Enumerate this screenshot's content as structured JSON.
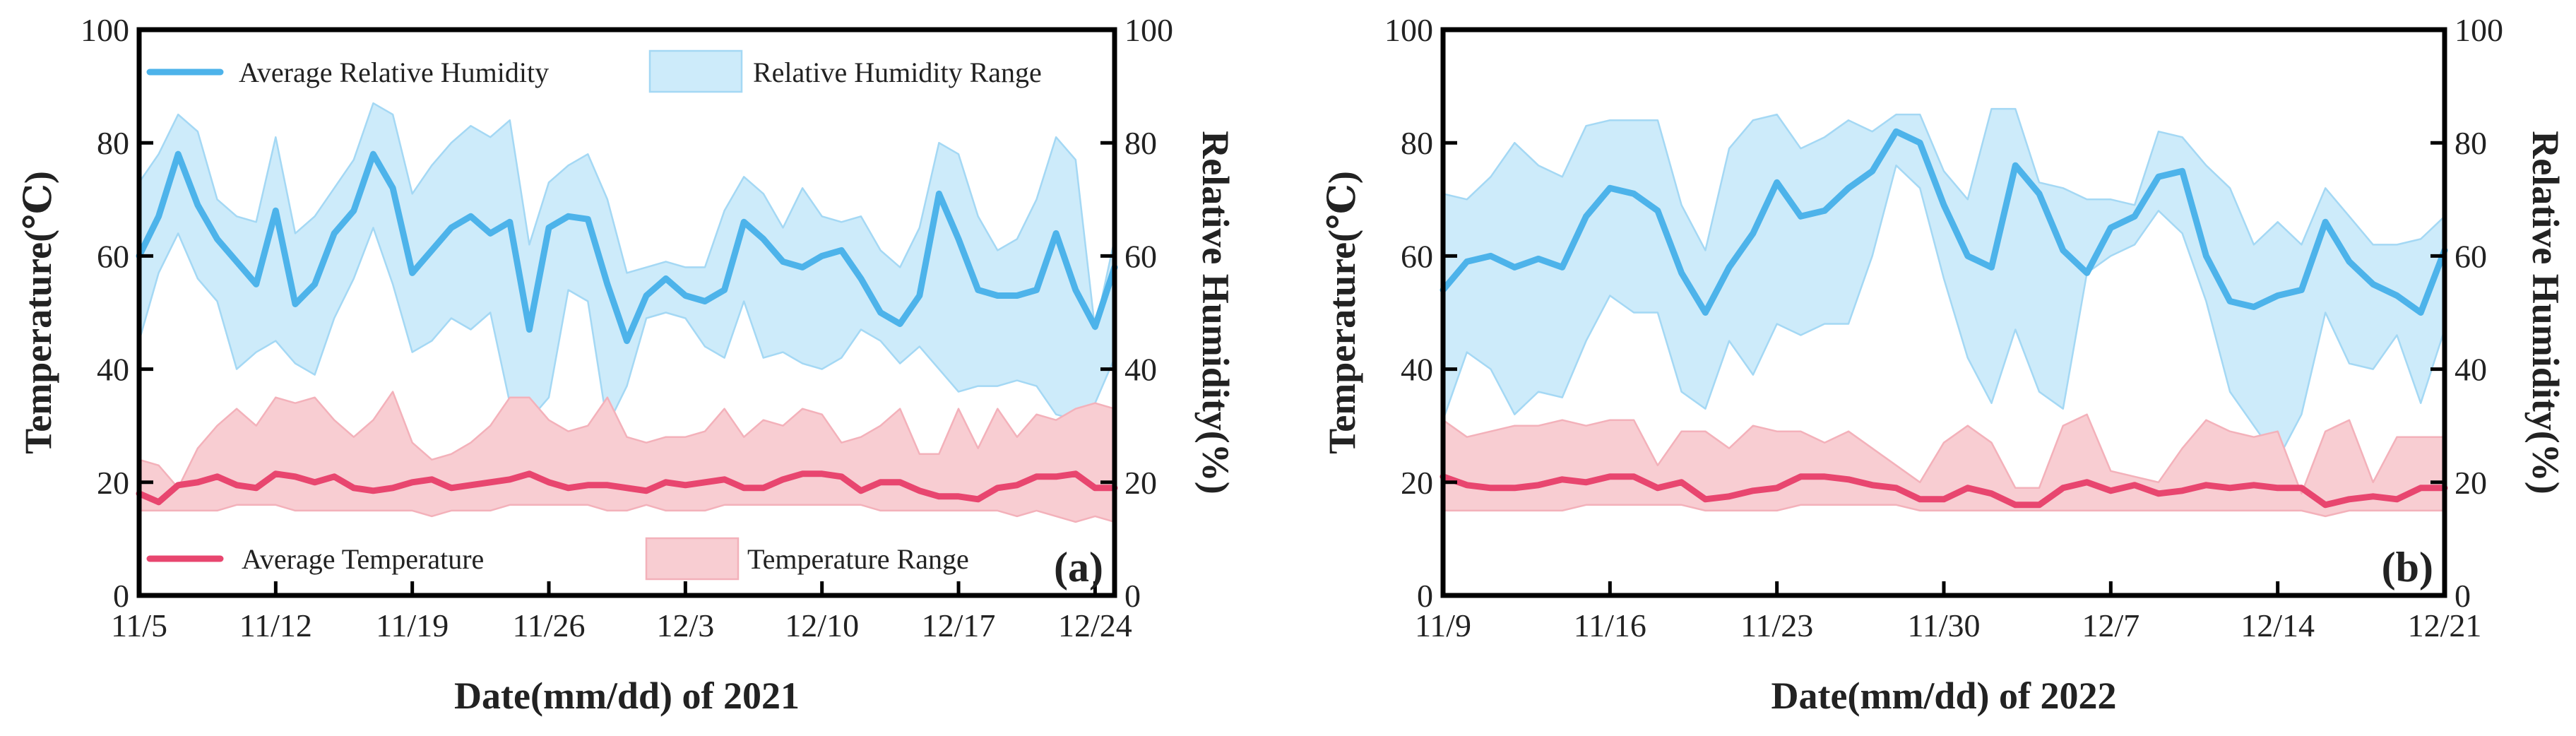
{
  "chart_data": [
    {
      "type": "line",
      "panel_label": "(a)",
      "xlabel": "Date(mm/dd) of 2021",
      "ylabel_left": "Temperature(℃)",
      "ylabel_right": "Relative Humidity(%)",
      "ylim": [
        0,
        100
      ],
      "y_ticks": [
        "0",
        "20",
        "40",
        "60",
        "80",
        "100"
      ],
      "x_ticks": [
        "11/5",
        "11/12",
        "11/19",
        "11/26",
        "12/3",
        "12/10",
        "12/17",
        "12/24"
      ],
      "x_tick_index": [
        0,
        7,
        14,
        21,
        28,
        35,
        42,
        49
      ],
      "legend": {
        "avg_humidity": "Average Relative Humidity",
        "humidity_range": "Relative Humidity Range",
        "avg_temperature": "Average Temperature",
        "temperature_range": "Temperature Range"
      },
      "colors": {
        "humidity": "#4db3ea",
        "humidity_fill": "#cdebfa",
        "temperature": "#e8466f",
        "temperature_fill": "#f8cdd2"
      },
      "series": [
        {
          "name": "Average Relative Humidity",
          "values": [
            60,
            67,
            78,
            69,
            63,
            59,
            55,
            68,
            51.5,
            55,
            64,
            68,
            78,
            72,
            57,
            61,
            65,
            67,
            64,
            66,
            47,
            65,
            67,
            66.5,
            55,
            45,
            53,
            56,
            53,
            52,
            54,
            66,
            63,
            59,
            58,
            60,
            61,
            56,
            50,
            48,
            53,
            71,
            63,
            54,
            53,
            53,
            54,
            64,
            54,
            47.5,
            58
          ]
        },
        {
          "name": "Relative Humidity Range (upper)",
          "values": [
            73,
            78,
            85,
            82,
            70,
            67,
            66,
            81,
            64,
            67,
            72,
            77,
            87,
            85,
            71,
            76,
            80,
            83,
            81,
            84,
            62,
            73,
            76,
            78,
            70,
            57,
            58,
            59,
            58,
            58,
            68,
            74,
            71,
            65,
            72,
            67,
            66,
            67,
            61,
            58,
            65,
            80,
            78,
            67,
            61,
            63,
            70,
            81,
            77,
            47,
            63
          ]
        },
        {
          "name": "Relative Humidity Range (lower)",
          "values": [
            45,
            57,
            64,
            56,
            52,
            40,
            43,
            45,
            41,
            39,
            49,
            56,
            65,
            55,
            43,
            45,
            49,
            47,
            50,
            34,
            31,
            35,
            54,
            52,
            30,
            37,
            49,
            50,
            49,
            44,
            42,
            52,
            42,
            43,
            41,
            40,
            42,
            47,
            45,
            41,
            44,
            40,
            36,
            37,
            37,
            38,
            37,
            32,
            31,
            34,
            42
          ]
        },
        {
          "name": "Average Temperature",
          "values": [
            18,
            16.5,
            19.5,
            20,
            21,
            19.5,
            19,
            21.5,
            21,
            20,
            21,
            19,
            18.5,
            19,
            20,
            20.5,
            19,
            19.5,
            20,
            20.5,
            21.5,
            20,
            19,
            19.5,
            19.5,
            19,
            18.5,
            20,
            19.5,
            20,
            20.5,
            19,
            19,
            20.5,
            21.5,
            21.5,
            21,
            18.5,
            20,
            20,
            18.5,
            17.5,
            17.5,
            17,
            19,
            19.5,
            21,
            21,
            21.5,
            19,
            19
          ]
        },
        {
          "name": "Temperature Range (upper)",
          "values": [
            24,
            23,
            19,
            26,
            30,
            33,
            30,
            35,
            34,
            35,
            31,
            28,
            31,
            36,
            27,
            24,
            25,
            27,
            30,
            35,
            35,
            31,
            29,
            30,
            35,
            28,
            27,
            28,
            28,
            29,
            33,
            28,
            31,
            30,
            33,
            32,
            27,
            28,
            30,
            33,
            25,
            25,
            33,
            26,
            33,
            28,
            32,
            31,
            33,
            34,
            33
          ]
        },
        {
          "name": "Temperature Range (lower)",
          "values": [
            15,
            15,
            15,
            15,
            15,
            16,
            16,
            16,
            15,
            15,
            15,
            15,
            15,
            15,
            15,
            14,
            15,
            15,
            15,
            16,
            16,
            16,
            16,
            16,
            15,
            15,
            16,
            15,
            15,
            15,
            16,
            16,
            16,
            16,
            16,
            16,
            16,
            16,
            15,
            15,
            15,
            15,
            15,
            15,
            15,
            14,
            15,
            14,
            13,
            14,
            13
          ]
        }
      ]
    },
    {
      "type": "line",
      "panel_label": "(b)",
      "xlabel": "Date(mm/dd) of 2022",
      "ylabel_left": "Temperature(℃)",
      "ylabel_right": "Relative Humidity(%)",
      "ylim": [
        0,
        100
      ],
      "y_ticks": [
        "0",
        "20",
        "40",
        "60",
        "80",
        "100"
      ],
      "x_ticks": [
        "11/9",
        "11/16",
        "11/23",
        "11/30",
        "12/7",
        "12/14",
        "12/21"
      ],
      "x_tick_index": [
        0,
        7,
        14,
        21,
        28,
        35,
        42
      ],
      "colors": {
        "humidity": "#4db3ea",
        "humidity_fill": "#cdebfa",
        "temperature": "#e8466f",
        "temperature_fill": "#f8cdd2"
      },
      "series": [
        {
          "name": "Average Relative Humidity",
          "values": [
            54,
            59,
            60,
            58,
            59.5,
            58,
            67,
            72,
            71,
            68,
            57,
            50,
            58,
            64,
            73,
            67,
            68,
            72,
            75,
            82,
            80,
            69,
            60,
            58,
            76,
            71,
            61,
            57,
            65,
            67,
            74,
            75,
            60,
            52,
            51,
            53,
            54,
            66,
            59,
            55,
            53,
            50,
            61
          ]
        },
        {
          "name": "Relative Humidity Range (upper)",
          "values": [
            71,
            70,
            74,
            80,
            76,
            74,
            83,
            84,
            84,
            84,
            69,
            61,
            79,
            84,
            85,
            79,
            81,
            84,
            82,
            85,
            85,
            75,
            70,
            86,
            86,
            73,
            72,
            70,
            70,
            69,
            82,
            81,
            76,
            72,
            62,
            66,
            62,
            72,
            67,
            62,
            62,
            63,
            67
          ]
        },
        {
          "name": "Relative Humidity Range (lower)",
          "values": [
            31,
            43,
            40,
            32,
            36,
            35,
            45,
            53,
            50,
            50,
            36,
            33,
            45,
            39,
            48,
            46,
            48,
            48,
            60,
            76,
            72,
            56,
            42,
            34,
            47,
            36,
            33,
            57,
            60,
            62,
            68,
            64,
            52,
            36,
            30,
            24,
            32,
            50,
            41,
            40,
            46,
            34,
            47
          ]
        },
        {
          "name": "Average Temperature",
          "values": [
            21,
            19.5,
            19,
            19,
            19.5,
            20.5,
            20,
            21,
            21,
            19,
            20,
            17,
            17.5,
            18.5,
            19,
            21,
            21,
            20.5,
            19.5,
            19,
            17,
            17,
            19,
            18,
            16,
            16,
            19,
            20,
            18.5,
            19.5,
            18,
            18.5,
            19.5,
            19,
            19.5,
            19,
            19,
            16,
            17,
            17.5,
            17,
            19,
            19
          ]
        },
        {
          "name": "Temperature Range (upper)",
          "values": [
            31,
            28,
            29,
            30,
            30,
            31,
            30,
            31,
            31,
            23,
            29,
            29,
            26,
            30,
            29,
            29,
            27,
            29,
            26,
            23,
            20,
            27,
            30,
            27,
            19,
            19,
            30,
            32,
            22,
            21,
            20,
            26,
            31,
            29,
            28,
            29,
            18,
            29,
            31,
            20,
            28,
            28,
            28
          ]
        },
        {
          "name": "Temperature Range (lower)",
          "values": [
            15,
            15,
            15,
            15,
            15,
            15,
            16,
            16,
            16,
            16,
            16,
            15,
            15,
            15,
            15,
            16,
            16,
            16,
            16,
            16,
            15,
            15,
            15,
            15,
            15,
            15,
            15,
            15,
            15,
            15,
            15,
            15,
            15,
            15,
            15,
            15,
            15,
            14,
            15,
            15,
            15,
            15,
            15
          ]
        }
      ]
    }
  ]
}
